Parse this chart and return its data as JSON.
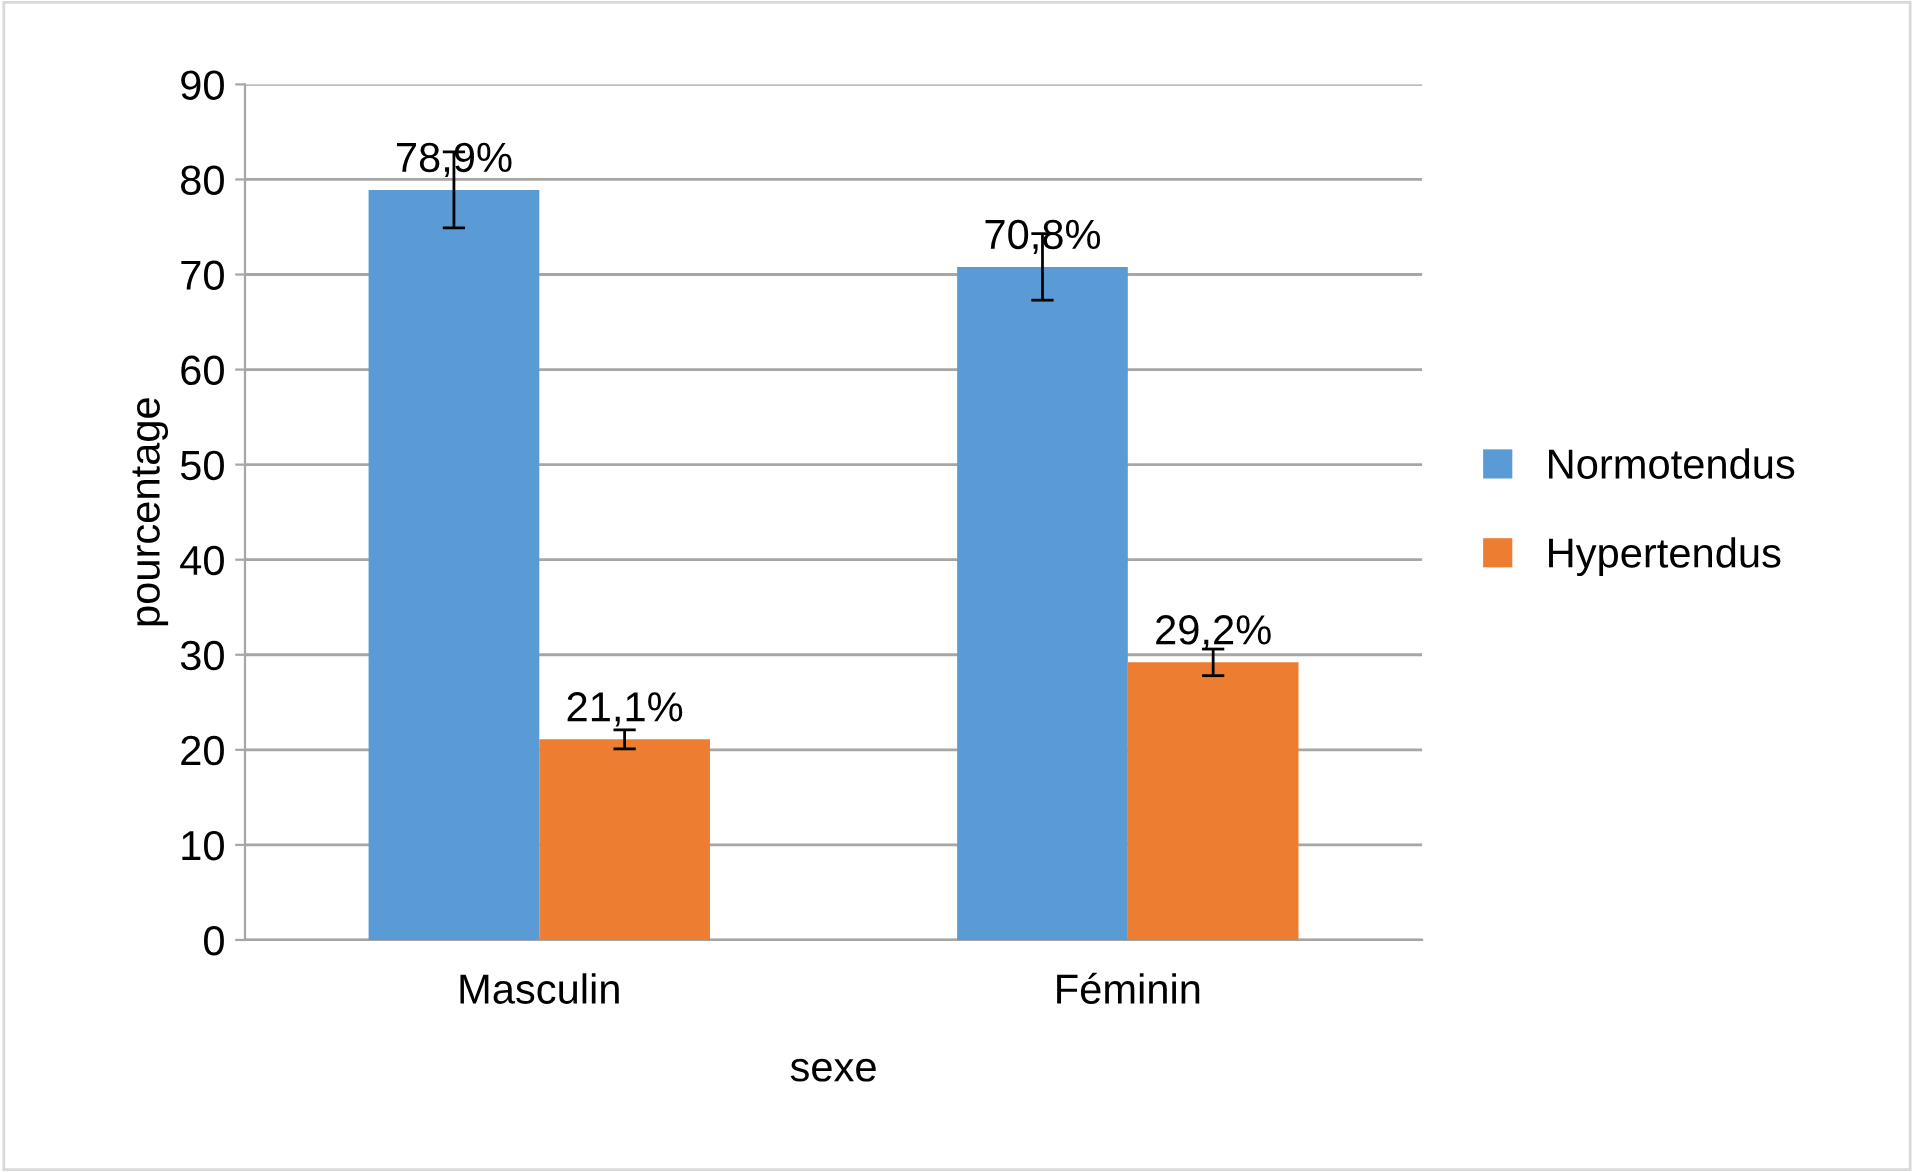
{
  "chart_data": {
    "type": "bar",
    "xlabel": "sexe",
    "ylabel": "pourcentage",
    "categories": [
      "Masculin",
      "Féminin"
    ],
    "series": [
      {
        "name": "Normotendus",
        "color": "#5b9bd5",
        "values": [
          78.9,
          70.8
        ],
        "errors": [
          4,
          3.5
        ],
        "value_labels": [
          "78,9%",
          "70,8%"
        ]
      },
      {
        "name": "Hypertendus",
        "color": "#ed7d31",
        "values": [
          21.1,
          29.2
        ],
        "errors": [
          1,
          1.4
        ],
        "value_labels": [
          "21,1%",
          "29,2%"
        ]
      }
    ],
    "ylim": [
      0,
      90
    ],
    "yticks": [
      0,
      10,
      20,
      30,
      40,
      50,
      60,
      70,
      80,
      90
    ],
    "grid": "y",
    "legend": "right"
  }
}
